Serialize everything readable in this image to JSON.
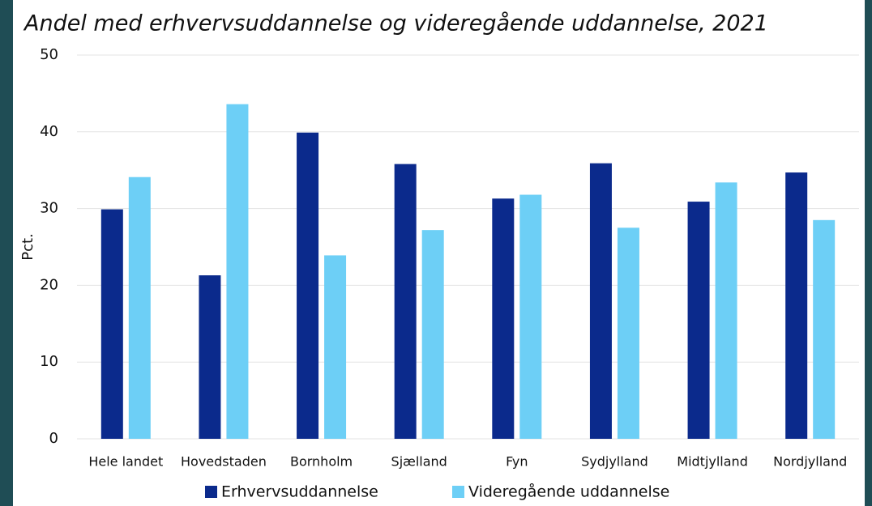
{
  "chart_data": {
    "type": "bar",
    "title": "Andel med erhvervsuddannelse og videregående uddannelse, 2021",
    "y_label": "Pct.",
    "categories": [
      "Hele landet",
      "Hovedstaden",
      "Bornholm",
      "Sjælland",
      "Fyn",
      "Sydjylland",
      "Midtjylland",
      "Nordjylland"
    ],
    "series": [
      {
        "name": "Erhvervsuddannelse",
        "color": "#0b2a8c",
        "values": [
          29.9,
          21.3,
          39.9,
          35.8,
          31.3,
          35.9,
          30.9,
          34.7
        ]
      },
      {
        "name": "Videregående uddannelse",
        "color": "#6dcff6",
        "values": [
          34.1,
          43.6,
          23.9,
          27.2,
          31.8,
          27.5,
          33.4,
          28.5
        ]
      }
    ],
    "ylim": [
      0,
      50
    ],
    "yticks": [
      0,
      10,
      20,
      30,
      40,
      50
    ],
    "grid": true,
    "legend": "bottom"
  }
}
